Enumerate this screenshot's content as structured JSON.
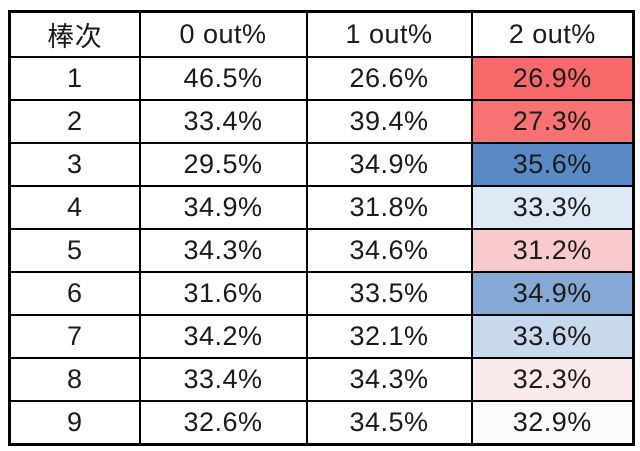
{
  "table": {
    "columns": [
      "棒次",
      "0 out%",
      "1 out%",
      "2 out%"
    ],
    "rows": [
      {
        "order": "1",
        "out0": "46.5%",
        "out1": "26.6%",
        "out2": "26.9%",
        "out2_bg": "#F8696B"
      },
      {
        "order": "2",
        "out0": "33.4%",
        "out1": "39.4%",
        "out2": "27.3%",
        "out2_bg": "#F87173"
      },
      {
        "order": "3",
        "out0": "29.5%",
        "out1": "34.9%",
        "out2": "35.6%",
        "out2_bg": "#5A8AC6"
      },
      {
        "order": "4",
        "out0": "34.9%",
        "out1": "31.8%",
        "out2": "33.3%",
        "out2_bg": "#DFE9F5"
      },
      {
        "order": "5",
        "out0": "34.3%",
        "out1": "34.6%",
        "out2": "31.2%",
        "out2_bg": "#F8CACD"
      },
      {
        "order": "6",
        "out0": "31.6%",
        "out1": "33.5%",
        "out2": "34.9%",
        "out2_bg": "#85A8D4"
      },
      {
        "order": "7",
        "out0": "34.2%",
        "out1": "32.1%",
        "out2": "33.6%",
        "out2_bg": "#C9D9EC"
      },
      {
        "order": "8",
        "out0": "33.4%",
        "out1": "34.3%",
        "out2": "32.3%",
        "out2_bg": "#FAE9EB"
      },
      {
        "order": "9",
        "out0": "32.6%",
        "out1": "34.5%",
        "out2": "32.9%",
        "out2_bg": "#FCFCFE"
      }
    ],
    "border_color": "#000000",
    "text_color": "#1a1a1a"
  },
  "chart_data": {
    "type": "table",
    "columns": [
      "棒次",
      "0 out%",
      "1 out%",
      "2 out%"
    ],
    "rows": [
      [
        1,
        46.5,
        26.6,
        26.9
      ],
      [
        2,
        33.4,
        39.4,
        27.3
      ],
      [
        3,
        29.5,
        34.9,
        35.6
      ],
      [
        4,
        34.9,
        31.8,
        33.3
      ],
      [
        5,
        34.3,
        34.6,
        31.2
      ],
      [
        6,
        31.6,
        33.5,
        34.9
      ],
      [
        7,
        34.2,
        32.1,
        33.6
      ],
      [
        8,
        33.4,
        34.3,
        32.3
      ],
      [
        9,
        32.6,
        34.5,
        32.9
      ]
    ],
    "conditional_formatting": {
      "column": "2 out%",
      "scale": "3-color",
      "min_color": "#F8696B",
      "mid_color": "#FCFCFF",
      "max_color": "#5A8AC6"
    }
  }
}
